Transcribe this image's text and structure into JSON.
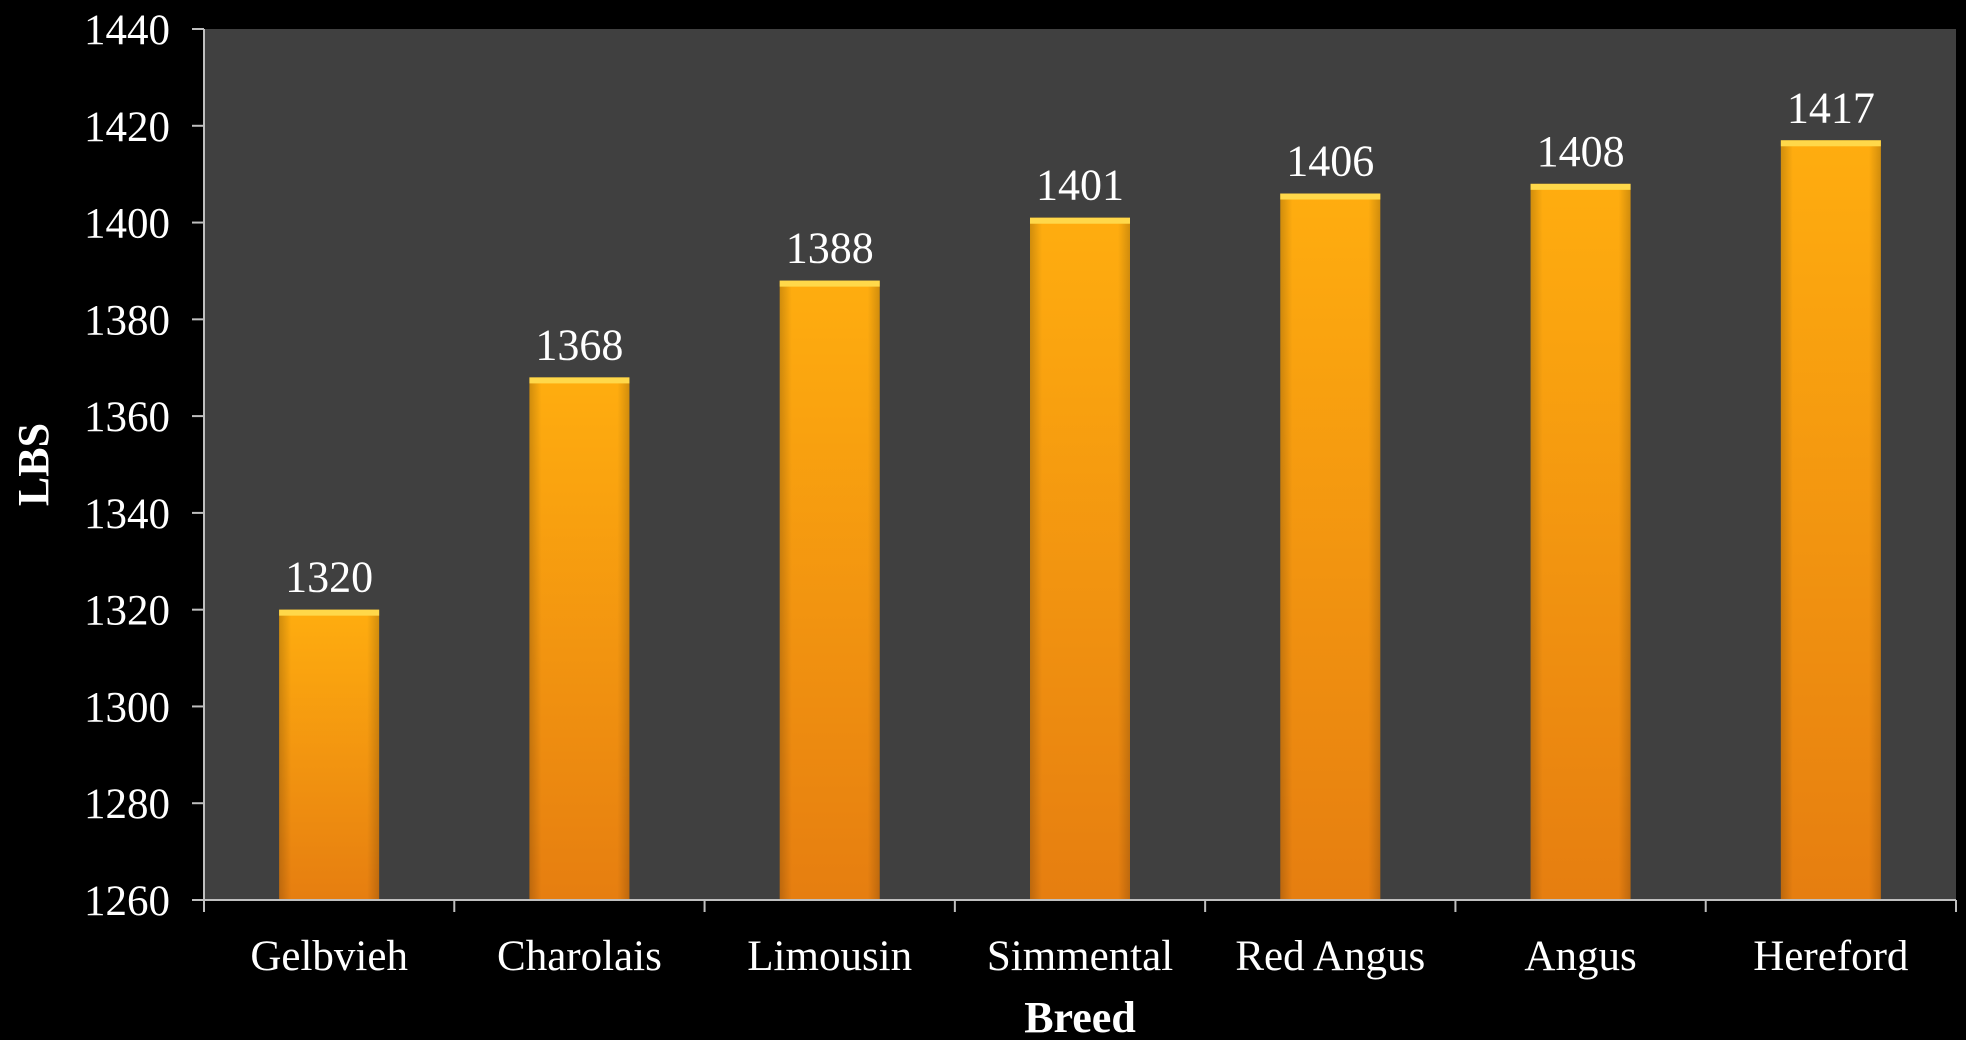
{
  "chart_data": {
    "type": "bar",
    "title": "",
    "xlabel": "Breed",
    "ylabel": "LBS",
    "categories": [
      "Gelbvieh",
      "Charolais",
      "Limousin",
      "Simmental",
      "Red Angus",
      "Angus",
      "Hereford"
    ],
    "values": [
      1320,
      1368,
      1388,
      1401,
      1406,
      1408,
      1417
    ],
    "data_labels": [
      "1320",
      "1368",
      "1388",
      "1401",
      "1406",
      "1408",
      "1417"
    ],
    "ylim": [
      1260,
      1440
    ],
    "yticks": [
      1260,
      1280,
      1300,
      1320,
      1340,
      1360,
      1380,
      1400,
      1420,
      1440
    ],
    "grid": false,
    "legend": "none",
    "colors": {
      "page_background": "#000000",
      "plot_background": "#404040",
      "bar_top": "#ffad0f",
      "bar_bottom": "#e67e10",
      "axis": "#bfbfbf",
      "text": "#ffffff"
    }
  }
}
